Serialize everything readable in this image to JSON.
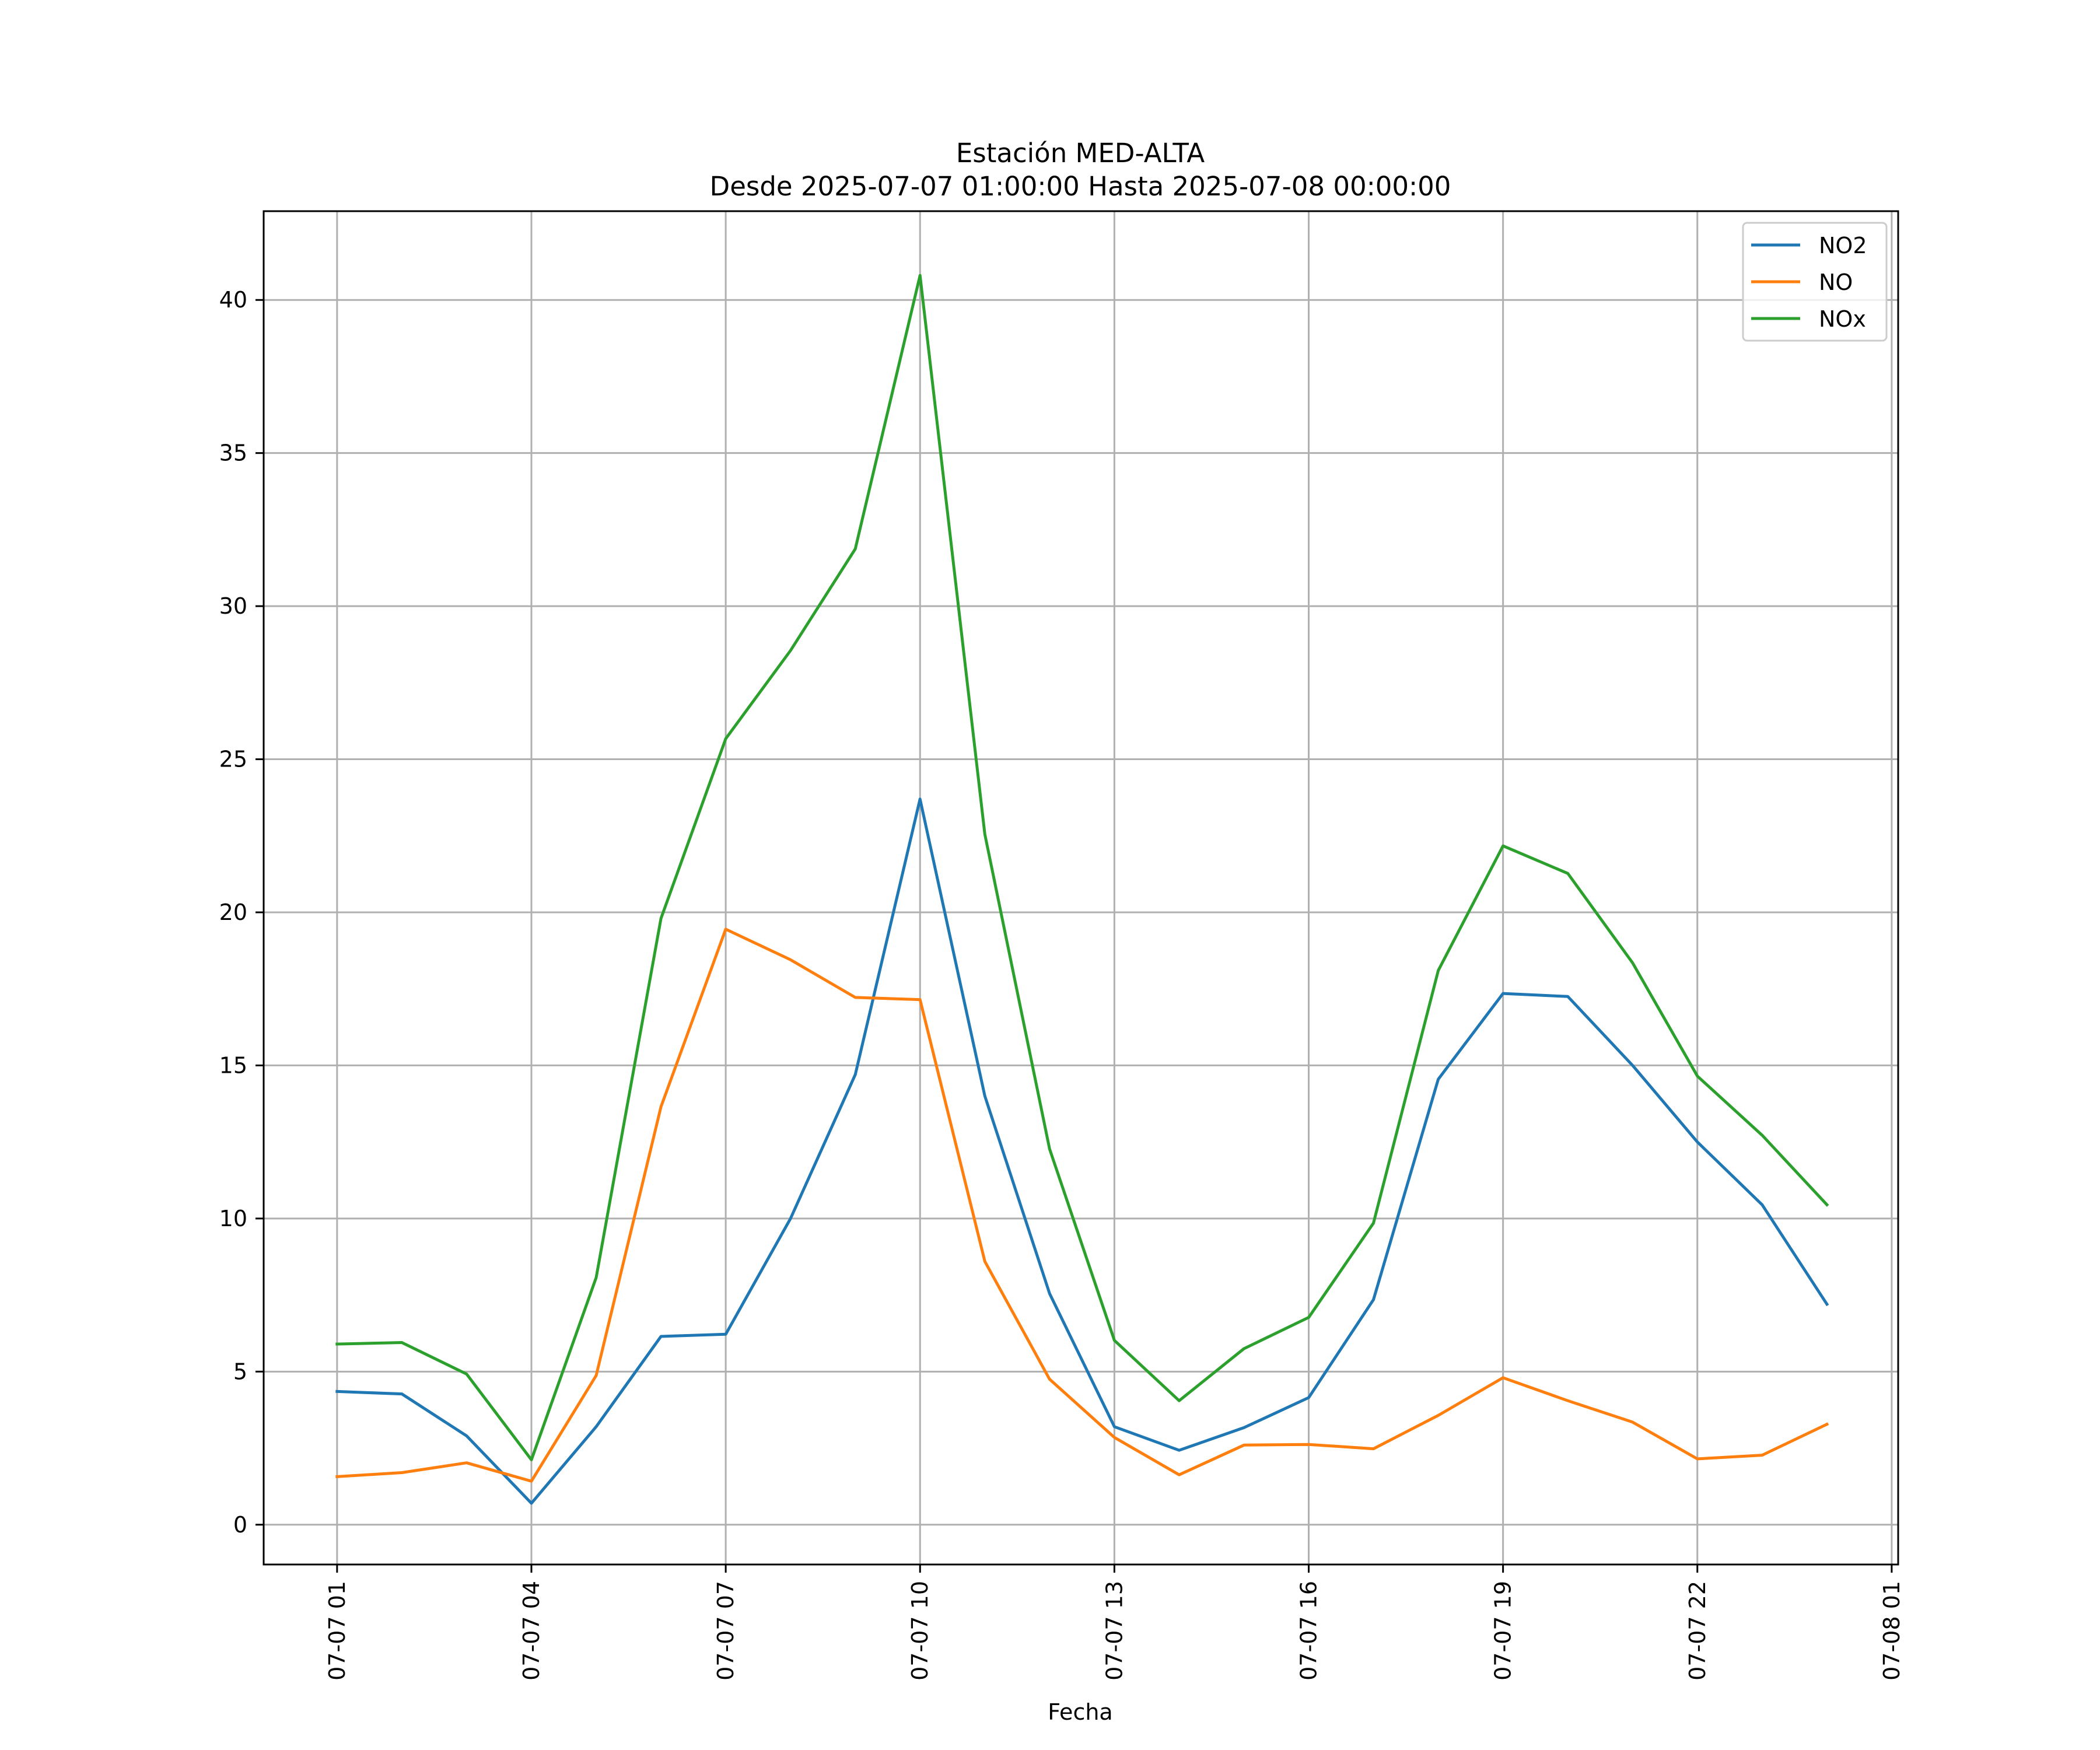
{
  "chart_data": {
    "type": "line",
    "title": "Estación MED-ALTA",
    "subtitle": "Desde 2025-07-07 01:00:00 Hasta 2025-07-08 00:00:00",
    "xlabel": "Fecha",
    "ylabel": "",
    "x": [
      "2025-07-07 01:00",
      "2025-07-07 02:00",
      "2025-07-07 03:00",
      "2025-07-07 04:00",
      "2025-07-07 05:00",
      "2025-07-07 06:00",
      "2025-07-07 07:00",
      "2025-07-07 08:00",
      "2025-07-07 09:00",
      "2025-07-07 10:00",
      "2025-07-07 11:00",
      "2025-07-07 12:00",
      "2025-07-07 13:00",
      "2025-07-07 14:00",
      "2025-07-07 15:00",
      "2025-07-07 16:00",
      "2025-07-07 17:00",
      "2025-07-07 18:00",
      "2025-07-07 19:00",
      "2025-07-07 20:00",
      "2025-07-07 21:00",
      "2025-07-07 22:00",
      "2025-07-07 23:00",
      "2025-07-08 00:00"
    ],
    "xlim": [
      "2025-07-06 23:52",
      "2025-07-08 01:06"
    ],
    "ylim": [
      -1.3,
      42.9
    ],
    "x_ticks": [
      {
        "label": "07-07 01",
        "x": "2025-07-07 01:00"
      },
      {
        "label": "07-07 04",
        "x": "2025-07-07 04:00"
      },
      {
        "label": "07-07 07",
        "x": "2025-07-07 07:00"
      },
      {
        "label": "07-07 10",
        "x": "2025-07-07 10:00"
      },
      {
        "label": "07-07 13",
        "x": "2025-07-07 13:00"
      },
      {
        "label": "07-07 16",
        "x": "2025-07-07 16:00"
      },
      {
        "label": "07-07 19",
        "x": "2025-07-07 19:00"
      },
      {
        "label": "07-07 22",
        "x": "2025-07-07 22:00"
      },
      {
        "label": "07-08 01",
        "x": "2025-07-08 01:00"
      }
    ],
    "y_ticks": [
      0,
      5,
      10,
      15,
      20,
      25,
      30,
      35,
      40
    ],
    "grid": true,
    "legend_position": "top-right",
    "series": [
      {
        "name": "NO2",
        "color": "#1f77b4",
        "values": [
          4.35,
          4.27,
          2.9,
          0.7,
          3.2,
          6.15,
          6.22,
          10.0,
          14.7,
          23.7,
          14.0,
          7.55,
          3.2,
          2.43,
          3.17,
          4.15,
          7.35,
          14.55,
          17.35,
          17.25,
          15.0,
          12.5,
          10.45,
          7.2
        ]
      },
      {
        "name": "NO",
        "color": "#ff7f0e",
        "values": [
          1.57,
          1.7,
          2.02,
          1.42,
          4.87,
          13.65,
          19.45,
          18.45,
          17.22,
          17.15,
          8.6,
          4.75,
          2.85,
          1.63,
          2.6,
          2.62,
          2.48,
          3.57,
          4.8,
          4.05,
          3.35,
          2.15,
          2.27,
          3.28
        ]
      },
      {
        "name": "NOx",
        "color": "#2ca02c",
        "values": [
          5.9,
          5.95,
          4.92,
          2.12,
          8.07,
          19.8,
          25.67,
          28.55,
          31.87,
          40.8,
          22.55,
          12.27,
          6.02,
          4.05,
          5.75,
          6.77,
          9.85,
          18.1,
          22.17,
          21.27,
          18.35,
          14.65,
          12.72,
          10.45
        ]
      }
    ]
  }
}
